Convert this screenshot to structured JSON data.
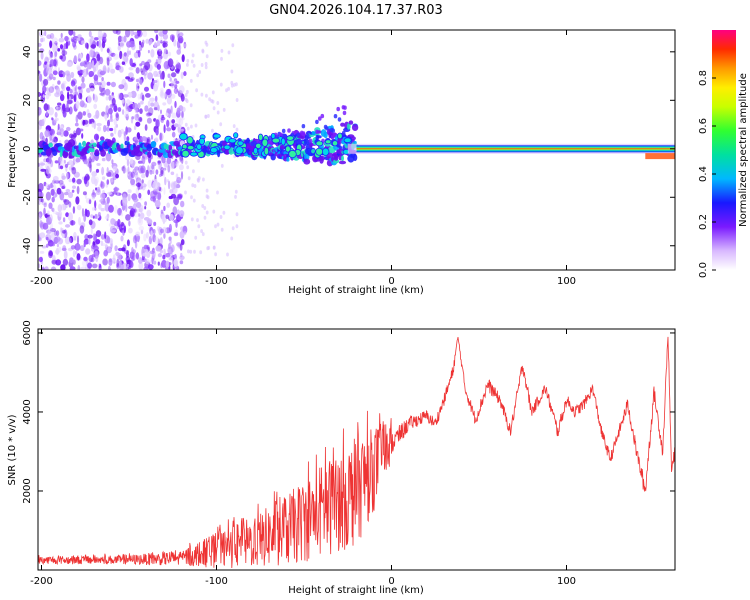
{
  "title": "GN04.2026.104.17.37.R03",
  "chart_data": [
    {
      "type": "heatmap",
      "name": "spectrogram",
      "xlabel": "Height of straight line (km)",
      "ylabel": "Frequency (Hz)",
      "xlim": [
        -202,
        162
      ],
      "ylim": [
        -50,
        49
      ],
      "xticks": [
        -200,
        -100,
        0,
        100
      ],
      "yticks": [
        -40,
        -20,
        0,
        20,
        40
      ],
      "colorbar": {
        "label": "Normalized spectral amplitude",
        "range": [
          0,
          1
        ],
        "ticks": [
          0.0,
          0.2,
          0.4,
          0.6,
          0.8
        ],
        "tick_labels": [
          "0.0",
          "0.2",
          "0.4",
          "0.6",
          "0.8"
        ]
      },
      "features": [
        {
          "description": "scattered noise region",
          "x_range": [
            -202,
            -118
          ],
          "freq_range": [
            -50,
            49
          ]
        },
        {
          "description": "sparse noise",
          "x_range": [
            -118,
            -90
          ],
          "freq_range": [
            -45,
            45
          ]
        },
        {
          "description": "broadening signal band",
          "x_range": [
            -90,
            -20
          ],
          "freq_range": [
            -12,
            20
          ]
        },
        {
          "description": "strong narrow carrier at 0 Hz",
          "x_range": [
            -20,
            162
          ],
          "freq_center": 0
        }
      ]
    },
    {
      "type": "line",
      "name": "snr",
      "xlabel": "Height of straight line (km)",
      "ylabel": "SNR (10 * v/v)",
      "xlim": [
        -202,
        162
      ],
      "ylim": [
        0,
        6100
      ],
      "xticks": [
        -200,
        -100,
        0,
        100
      ],
      "yticks": [
        2000,
        4000,
        6000
      ],
      "series": [
        {
          "name": "SNR",
          "color": "#ee3333",
          "envelope": {
            "x": [
              -202,
              -150,
              -120,
              -100,
              -80,
              -60,
              -40,
              -20,
              -10,
              0,
              10,
              20,
              25,
              30,
              35,
              38,
              42,
              48,
              55,
              62,
              68,
              75,
              80,
              88,
              95,
              100,
              105,
              110,
              115,
              120,
              125,
              130,
              135,
              140,
              145,
              150,
              155,
              158,
              160,
              162
            ],
            "mean": [
              250,
              260,
              300,
              500,
              700,
              1000,
              1500,
              2000,
              2600,
              3200,
              3700,
              3900,
              3700,
              4300,
              5000,
              5900,
              4600,
              3800,
              4700,
              4300,
              3500,
              5200,
              4000,
              4600,
              3500,
              4300,
              4000,
              4200,
              4600,
              3500,
              2800,
              3500,
              4200,
              3000,
              2000,
              4500,
              3000,
              6000,
              2500,
              3000
            ],
            "amp": [
              100,
              120,
              200,
              450,
              650,
              900,
              1200,
              1400,
              1100,
              500,
              300,
              250,
              250,
              250,
              300,
              100,
              250,
              250,
              300,
              250,
              250,
              300,
              250,
              250,
              300,
              250,
              250,
              250,
              250,
              250,
              250,
              250,
              300,
              300,
              400,
              300,
              300,
              200,
              300,
              300
            ]
          }
        }
      ]
    }
  ]
}
